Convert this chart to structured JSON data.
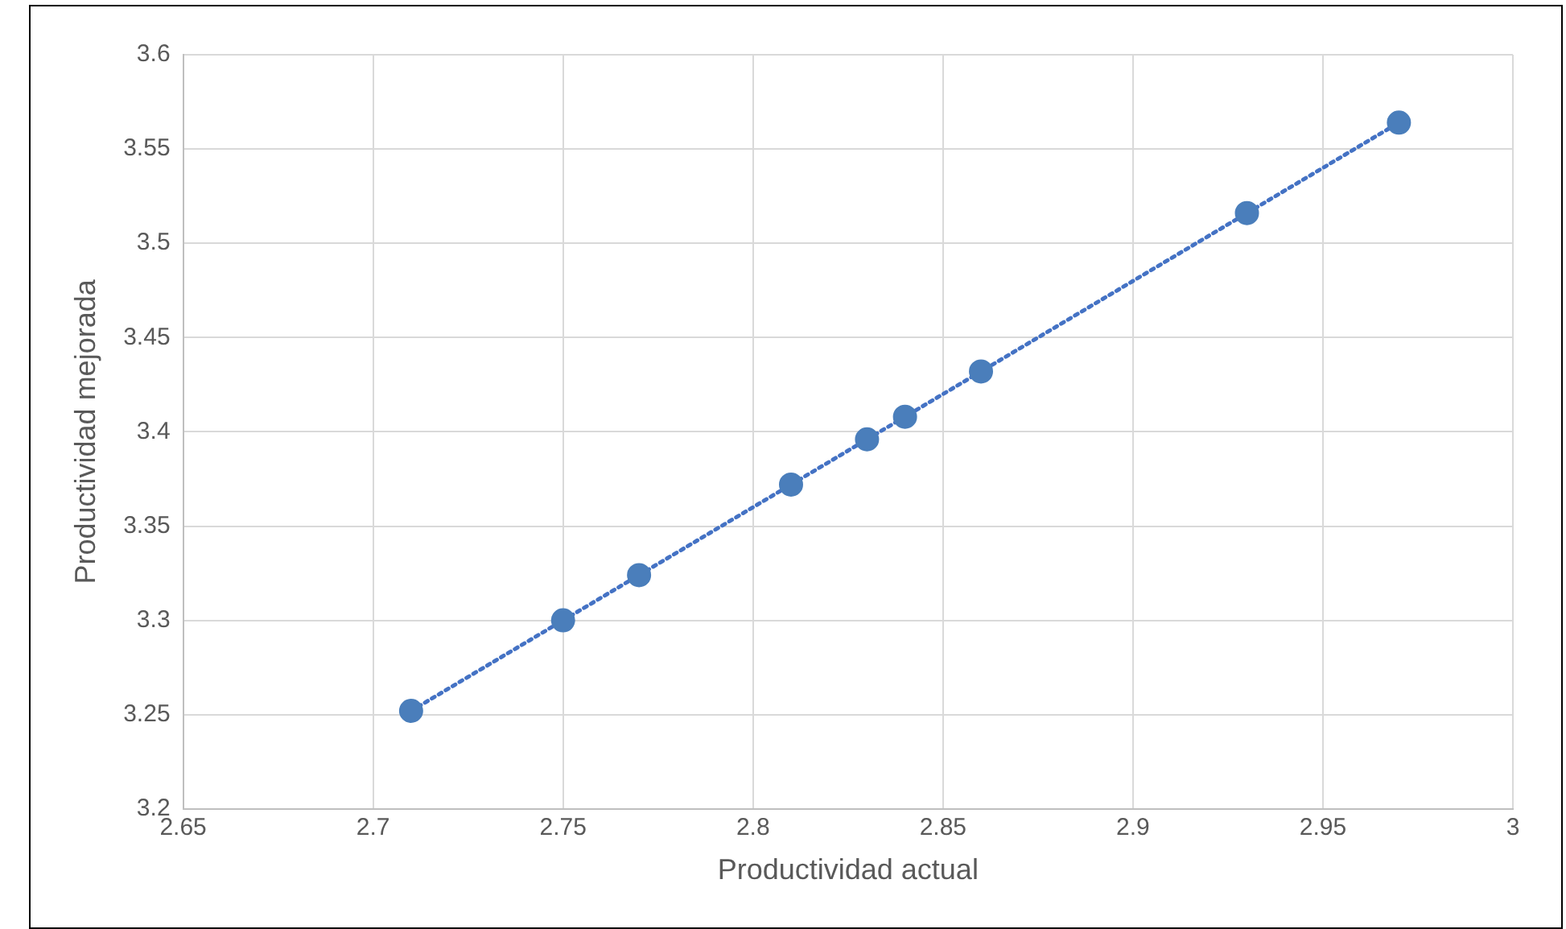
{
  "chart_data": {
    "type": "scatter",
    "xlabel": "Productividad actual",
    "ylabel": "Productividad mejorada",
    "xlim": [
      2.65,
      3
    ],
    "xticks": [
      2.65,
      2.7,
      2.75,
      2.8,
      2.85,
      2.9,
      2.95,
      3
    ],
    "ylim": [
      3.2,
      3.6
    ],
    "yticks": [
      3.2,
      3.25,
      3.3,
      3.35,
      3.4,
      3.45,
      3.5,
      3.55,
      3.6
    ],
    "grid": true,
    "legend": false,
    "series": [
      {
        "type": "scatter",
        "color": "#4a7ebb",
        "marker": "circle",
        "x": [
          2.71,
          2.75,
          2.77,
          2.81,
          2.83,
          2.84,
          2.86,
          2.93,
          2.97
        ],
        "values": [
          3.252,
          3.3,
          3.324,
          3.372,
          3.396,
          3.408,
          3.432,
          3.516,
          3.564
        ]
      },
      {
        "type": "line",
        "color": "#4472c4",
        "marker": "none",
        "line_style": "dotted",
        "x": [
          2.71,
          2.97
        ],
        "values": [
          3.252,
          3.564
        ]
      }
    ]
  }
}
